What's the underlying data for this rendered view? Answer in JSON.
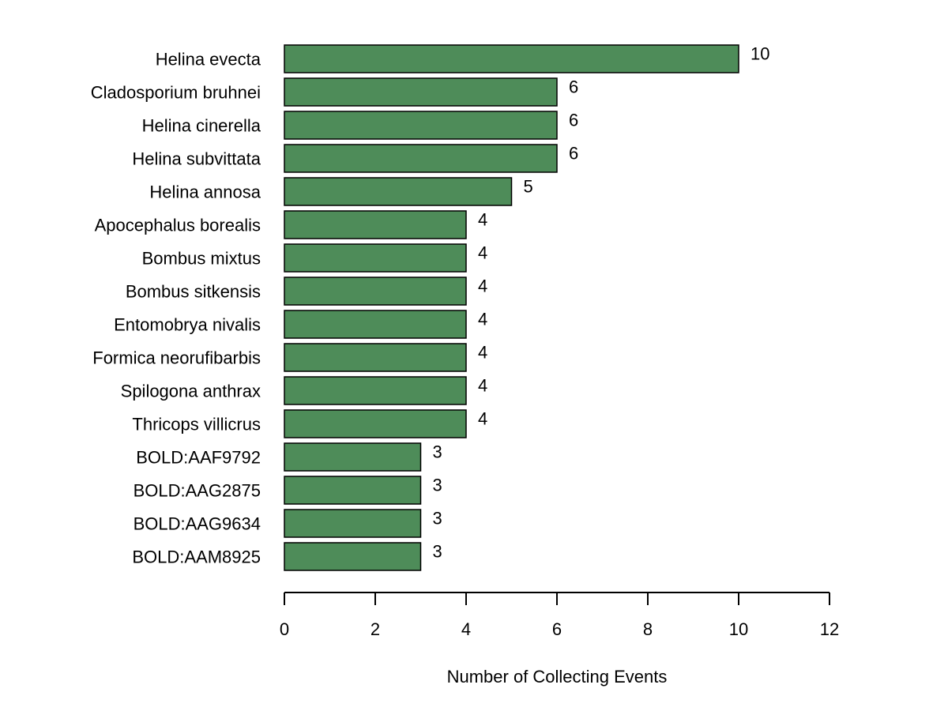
{
  "chart_data": {
    "type": "bar",
    "orientation": "horizontal",
    "title": "",
    "xlabel": "Number of Collecting Events",
    "ylabel": "",
    "xlim": [
      0,
      12
    ],
    "xticks": [
      0,
      2,
      4,
      6,
      8,
      10,
      12
    ],
    "grid": false,
    "bar_color": "#4e8c59",
    "bar_edge_color": "#000000",
    "data_labels": true,
    "categories": [
      "Helina evecta",
      "Cladosporium bruhnei",
      "Helina cinerella",
      "Helina subvittata",
      "Helina annosa",
      "Apocephalus borealis",
      "Bombus mixtus",
      "Bombus sitkensis",
      "Entomobrya nivalis",
      "Formica neorufibarbis",
      "Spilogona anthrax",
      "Thricops villicrus",
      "BOLD:AAF9792",
      "BOLD:AAG2875",
      "BOLD:AAG9634",
      "BOLD:AAM8925"
    ],
    "values": [
      10,
      6,
      6,
      6,
      5,
      4,
      4,
      4,
      4,
      4,
      4,
      4,
      3,
      3,
      3,
      3
    ]
  }
}
